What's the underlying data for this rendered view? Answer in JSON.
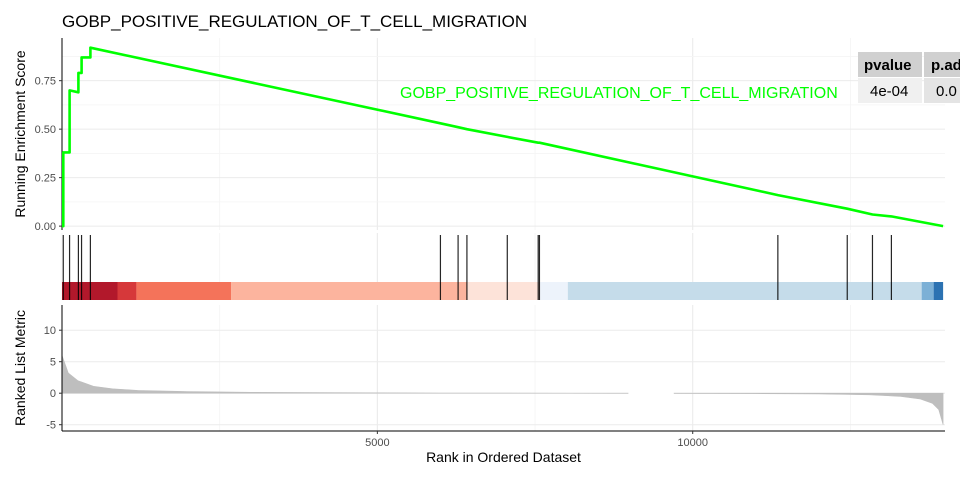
{
  "chart_data": {
    "type": "line",
    "title": "GOBP_POSITIVE_REGULATION_OF_T_CELL_MIGRATION",
    "xlabel": "Rank in Ordered Dataset",
    "xlim": [
      0,
      14000
    ],
    "x_ticks": [
      5000,
      10000
    ],
    "x_tick_labels": [
      "5000",
      "10000"
    ],
    "grid": true,
    "panels": [
      {
        "name": "running-score",
        "ylabel": "Running Enrichment Score",
        "ylim": [
          -0.02,
          0.97
        ],
        "y_ticks": [
          0.0,
          0.25,
          0.5,
          0.75
        ],
        "y_tick_labels": [
          "0.00",
          "0.25",
          "0.50",
          "0.75"
        ]
      },
      {
        "name": "hits"
      },
      {
        "name": "ranked-metric",
        "ylabel": "Ranked List Metric",
        "ylim": [
          -6,
          14
        ],
        "y_ticks": [
          -5,
          0,
          5,
          10
        ],
        "y_tick_labels": [
          "-5",
          "0",
          "5",
          "10"
        ]
      }
    ],
    "series": [
      {
        "name": "GOBP_POSITIVE_REGULATION_OF_T_CELL_MIGRATION",
        "color": "#00ff00",
        "x": [
          0,
          20,
          20,
          120,
          120,
          260,
          260,
          310,
          310,
          450,
          450,
          6000,
          6000,
          6280,
          6280,
          6420,
          6420,
          7060,
          7060,
          7550,
          7550,
          7570,
          7570,
          11350,
          11350,
          12450,
          12450,
          12850,
          12850,
          13150,
          13150,
          13970
        ],
        "y": [
          0.0,
          0.0,
          0.38,
          0.38,
          0.7,
          0.69,
          0.79,
          0.79,
          0.87,
          0.87,
          0.92,
          0.53,
          0.53,
          0.51,
          0.51,
          0.5,
          0.5,
          0.46,
          0.46,
          0.43,
          0.43,
          0.43,
          0.43,
          0.16,
          0.16,
          0.09,
          0.09,
          0.06,
          0.06,
          0.05,
          0.05,
          0.0
        ]
      }
    ],
    "hits": [
      20,
      120,
      260,
      310,
      450,
      6000,
      6280,
      6420,
      7060,
      7550,
      7570,
      11350,
      12450,
      12850,
      13150
    ],
    "color_bands": [
      {
        "x0": 0,
        "x1": 880,
        "color": "#b2182b"
      },
      {
        "x0": 880,
        "x1": 1180,
        "color": "#d6383a"
      },
      {
        "x0": 1180,
        "x1": 2680,
        "color": "#f4735a"
      },
      {
        "x0": 2680,
        "x1": 6420,
        "color": "#fcb49e"
      },
      {
        "x0": 6420,
        "x1": 7580,
        "color": "#fde3d9"
      },
      {
        "x0": 7580,
        "x1": 8020,
        "color": "#edf3fb"
      },
      {
        "x0": 8020,
        "x1": 13630,
        "color": "#c5dcea"
      },
      {
        "x0": 13630,
        "x1": 13820,
        "color": "#7cb0d6"
      },
      {
        "x0": 13820,
        "x1": 13970,
        "color": "#2c72b2"
      }
    ],
    "ranked_metric": {
      "x": [
        0,
        100,
        250,
        500,
        800,
        1200,
        2000,
        3000,
        4000,
        5000,
        6000,
        7000,
        8000,
        9000,
        10000,
        11000,
        12000,
        12800,
        13300,
        13600,
        13800,
        13900,
        13970
      ],
      "y": [
        6.0,
        3.2,
        2.0,
        1.1,
        0.7,
        0.45,
        0.25,
        0.15,
        0.1,
        0.06,
        0.03,
        0.01,
        0.0,
        -0.01,
        -0.03,
        -0.07,
        -0.12,
        -0.25,
        -0.5,
        -0.9,
        -1.6,
        -2.6,
        -5.0
      ],
      "gap": [
        8980,
        9700
      ],
      "color": "#bebebe"
    },
    "table": {
      "columns": [
        "pvalue",
        "p.adjust"
      ],
      "rows": [
        [
          "4e-04",
          "0.0"
        ]
      ]
    }
  }
}
